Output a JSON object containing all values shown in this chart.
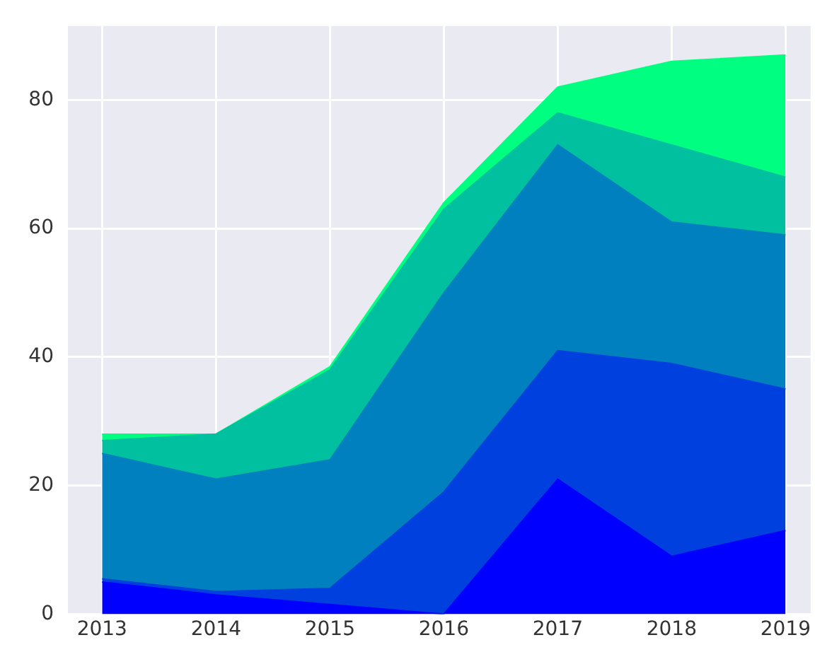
{
  "chart_data": {
    "type": "area",
    "stacked": true,
    "x": [
      2013,
      2014,
      2015,
      2016,
      2017,
      2018,
      2019
    ],
    "series": [
      {
        "color": "#0000ff",
        "values": [
          5,
          3,
          1.5,
          0,
          21,
          9,
          13
        ]
      },
      {
        "color": "#0040df",
        "values": [
          0.5,
          0.5,
          2.5,
          19,
          20,
          30,
          22
        ]
      },
      {
        "color": "#0080bf",
        "values": [
          19.5,
          17.5,
          20,
          31,
          32,
          22,
          24
        ]
      },
      {
        "color": "#00c0a0",
        "values": [
          2,
          7,
          14,
          13,
          5,
          12,
          9
        ]
      },
      {
        "color": "#00ff80",
        "values": [
          1,
          0,
          0.5,
          1,
          4,
          13,
          19
        ]
      }
    ],
    "xlim": [
      2012.7,
      2019.22
    ],
    "xticks": [
      2013,
      2014,
      2015,
      2016,
      2017,
      2018,
      2019
    ],
    "ylim": [
      0,
      91.5
    ],
    "yticks": [
      0,
      20,
      40,
      60,
      80
    ],
    "grid": true,
    "legend": false
  }
}
